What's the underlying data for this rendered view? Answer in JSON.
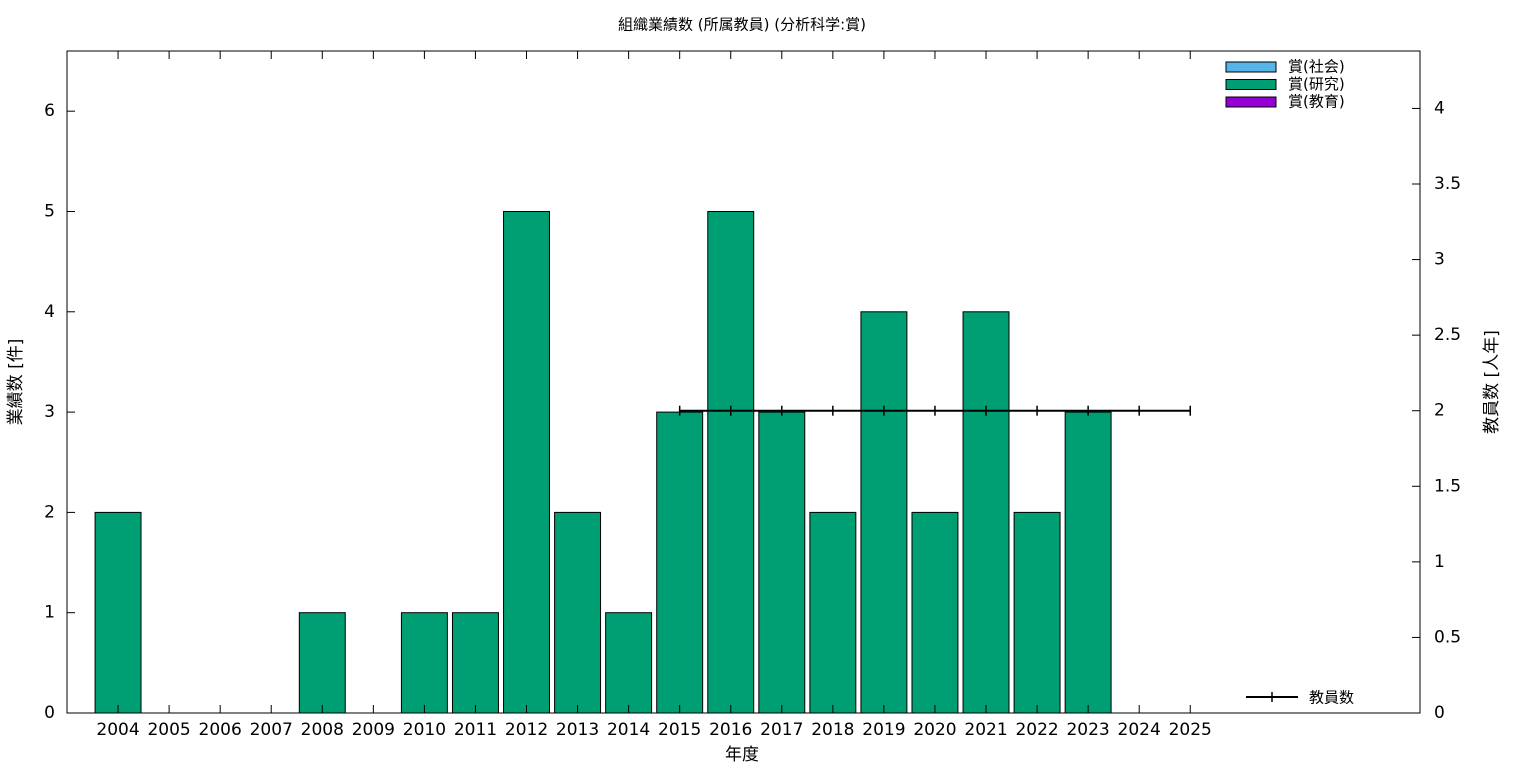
{
  "chart_data": {
    "type": "bar",
    "stacked": true,
    "title": "組織業績数 (所属教員) (分析科学:賞)",
    "xlabel": "年度",
    "ylabel": "業績数 [件]",
    "y2label": "教員数 [人年]",
    "x": [
      2004,
      2005,
      2006,
      2007,
      2008,
      2009,
      2010,
      2011,
      2012,
      2013,
      2014,
      2015,
      2016,
      2017,
      2018,
      2019,
      2020,
      2021,
      2022,
      2023,
      2024,
      2025
    ],
    "xlim": [
      2003,
      2029.5
    ],
    "xticks": [
      2004,
      2005,
      2006,
      2007,
      2008,
      2009,
      2010,
      2011,
      2012,
      2013,
      2014,
      2015,
      2016,
      2017,
      2018,
      2019,
      2020,
      2021,
      2022,
      2023,
      2024,
      2025
    ],
    "ylim": [
      0,
      6.6
    ],
    "yticks": [
      0,
      1,
      2,
      3,
      4,
      5,
      6
    ],
    "y2lim": [
      0,
      4.38
    ],
    "y2ticks": [
      0,
      0.5,
      1,
      1.5,
      2,
      2.5,
      3,
      3.5,
      4
    ],
    "series": [
      {
        "name": "賞(社会)",
        "color": "#56b4e9",
        "values": [
          0,
          0,
          0,
          0,
          0,
          0,
          0,
          0,
          0,
          0,
          0,
          0,
          0,
          0,
          0,
          0,
          0,
          0,
          0,
          0,
          0,
          0
        ]
      },
      {
        "name": "賞(研究)",
        "color": "#009e73",
        "values": [
          2,
          0,
          0,
          0,
          1,
          0,
          1,
          1,
          5,
          2,
          1,
          3,
          5,
          3,
          2,
          4,
          2,
          4,
          2,
          3,
          0,
          0
        ]
      },
      {
        "name": "賞(教育)",
        "color": "#9400d3",
        "values": [
          0,
          0,
          0,
          0,
          0,
          0,
          0,
          0,
          0,
          0,
          0,
          0,
          0,
          0,
          0,
          0,
          0,
          0,
          0,
          0,
          0,
          0
        ]
      },
      {
        "name": "教員数",
        "type": "line",
        "axis": "y2",
        "color": "#000000",
        "values": [
          null,
          null,
          null,
          null,
          null,
          null,
          null,
          null,
          null,
          null,
          null,
          2,
          2,
          2,
          2,
          2,
          2,
          2,
          2,
          2,
          2,
          2
        ]
      }
    ]
  }
}
